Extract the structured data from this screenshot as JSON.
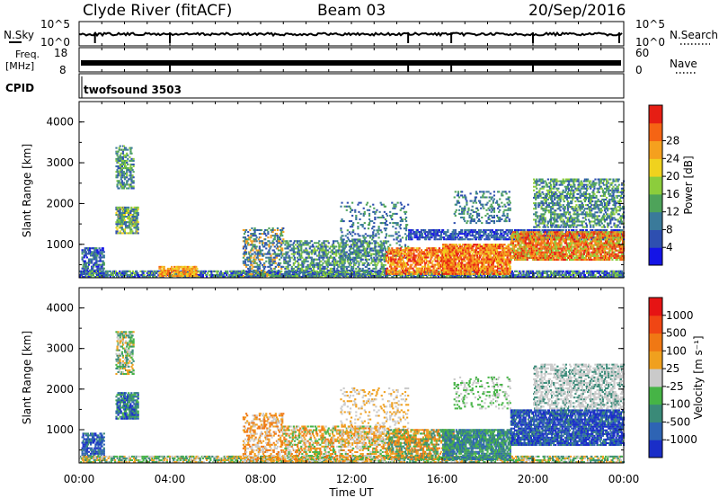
{
  "header": {
    "station": "Clyde River (fitACF)",
    "beam": "Beam 03",
    "date": "20/Sep/2016"
  },
  "panels": {
    "nsky": {
      "label": "N.Sky",
      "left_ticks": [
        "10^5",
        "10^0"
      ],
      "right_ticks": [
        "10^5",
        "10^0"
      ],
      "right_label": "N.Search"
    },
    "freq": {
      "label_top": "Freq.",
      "label_bottom": "[MHz]",
      "left_ticks": [
        "18",
        "8"
      ],
      "right_ticks": [
        "60",
        "0"
      ],
      "right_label": "Nave"
    },
    "cpid": {
      "label": "CPID",
      "program": "twofsound 3503"
    }
  },
  "chart_data": [
    {
      "type": "heatmap",
      "name": "power",
      "ylabel": "Slant Range [km]",
      "xlabel": "",
      "ylim": [
        180,
        4500
      ],
      "yticks": [
        "1000",
        "2000",
        "3000",
        "4000"
      ],
      "colorbar": {
        "label": "Power [dB]",
        "ticks": [
          "4",
          "8",
          "12",
          "16",
          "20",
          "24",
          "28"
        ],
        "colors": [
          "#1414e6",
          "#2e4fb0",
          "#3a7a9a",
          "#4ea35a",
          "#8ccd3c",
          "#f0d21e",
          "#f5a01e",
          "#f56414",
          "#e61e14"
        ]
      }
    },
    {
      "type": "heatmap",
      "name": "velocity",
      "ylabel": "Slant Range [km]",
      "xlabel": "Time UT",
      "ylim": [
        180,
        4500
      ],
      "yticks": [
        "1000",
        "2000",
        "3000",
        "4000"
      ],
      "colorbar": {
        "label": "Velocity [m s⁻¹]",
        "ticks": [
          "1000",
          "500",
          "100",
          "25",
          "-25",
          "-100",
          "-500",
          "-1000"
        ],
        "colors": [
          "#1a2ec8",
          "#2e64b4",
          "#3a8a78",
          "#46b446",
          "#cacaca",
          "#f0a01e",
          "#f07814",
          "#f04614",
          "#e61414"
        ]
      }
    }
  ],
  "time_axis": {
    "label": "Time UT",
    "ticks": [
      "00:00",
      "04:00",
      "08:00",
      "12:00",
      "16:00",
      "20:00",
      "00:00"
    ]
  }
}
